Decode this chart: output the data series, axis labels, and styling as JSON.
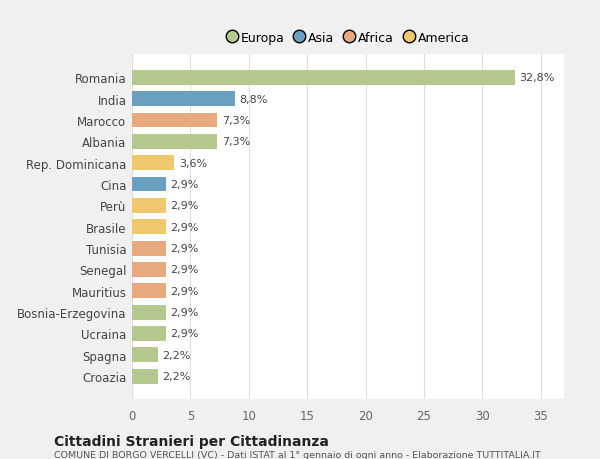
{
  "countries": [
    "Romania",
    "India",
    "Marocco",
    "Albania",
    "Rep. Dominicana",
    "Cina",
    "Perù",
    "Brasile",
    "Tunisia",
    "Senegal",
    "Mauritius",
    "Bosnia-Erzegovina",
    "Ucraina",
    "Spagna",
    "Croazia"
  ],
  "values": [
    32.8,
    8.8,
    7.3,
    7.3,
    3.6,
    2.9,
    2.9,
    2.9,
    2.9,
    2.9,
    2.9,
    2.9,
    2.9,
    2.2,
    2.2
  ],
  "labels": [
    "32,8%",
    "8,8%",
    "7,3%",
    "7,3%",
    "3,6%",
    "2,9%",
    "2,9%",
    "2,9%",
    "2,9%",
    "2,9%",
    "2,9%",
    "2,9%",
    "2,9%",
    "2,2%",
    "2,2%"
  ],
  "colors": [
    "#b5c98e",
    "#6b9fc0",
    "#e8a97e",
    "#b5c98e",
    "#f0c96e",
    "#6b9fc0",
    "#f0c96e",
    "#f0c96e",
    "#e8a97e",
    "#e8a97e",
    "#e8a97e",
    "#b5c98e",
    "#b5c98e",
    "#b5c98e",
    "#b5c98e"
  ],
  "legend_labels": [
    "Europa",
    "Asia",
    "Africa",
    "America"
  ],
  "legend_colors": [
    "#b5c98e",
    "#6b9fc0",
    "#e8a97e",
    "#f0c96e"
  ],
  "title": "Cittadini Stranieri per Cittadinanza",
  "subtitle": "COMUNE DI BORGO VERCELLI (VC) - Dati ISTAT al 1° gennaio di ogni anno - Elaborazione TUTTITALIA.IT",
  "xlim": [
    0,
    37
  ],
  "xticks": [
    0,
    5,
    10,
    15,
    20,
    25,
    30,
    35
  ],
  "background_color": "#f0f0f0",
  "plot_bg_color": "#ffffff",
  "grid_color": "#dddddd",
  "bar_height": 0.7
}
